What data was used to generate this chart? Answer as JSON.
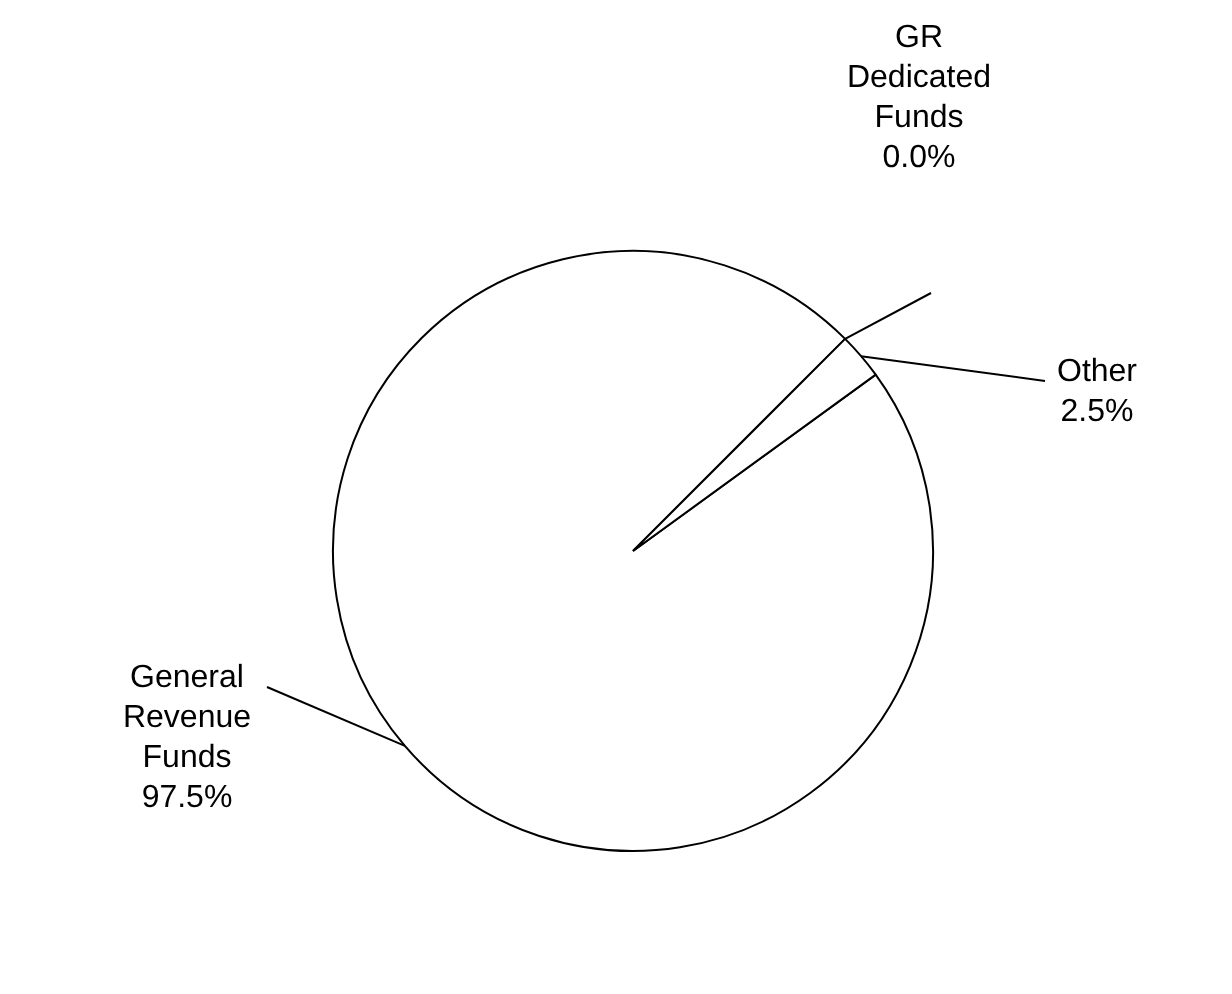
{
  "chart_data": {
    "type": "pie",
    "categories": [
      "General Revenue Funds",
      "GR Dedicated Funds",
      "Other"
    ],
    "values": [
      97.5,
      0.0,
      2.5
    ],
    "value_labels": [
      "97.5%",
      "0.0%",
      "2.5%"
    ],
    "colors": [
      "#ffffff",
      "#ffffff",
      "#ffffff"
    ]
  }
}
